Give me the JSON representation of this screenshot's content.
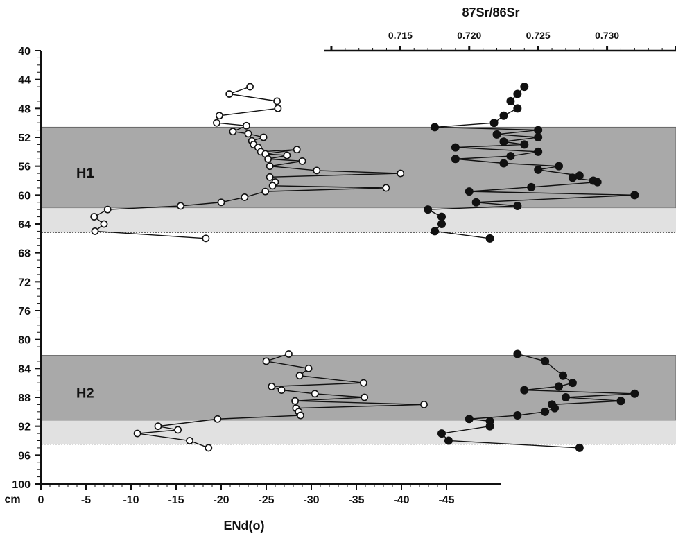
{
  "chart_data": {
    "type": "scatter",
    "title": "",
    "xlabel": "ENd(o)",
    "ylabel": "cm",
    "top_axis_label": "87Sr/86Sr",
    "y_ticks": [
      "40",
      "44",
      "48",
      "52",
      "56",
      "60",
      "64",
      "68",
      "72",
      "76",
      "80",
      "84",
      "88",
      "92",
      "96",
      "100"
    ],
    "x_ticks": [
      "0",
      "-5",
      "-10",
      "-15",
      "-20",
      "-25",
      "-30",
      "-35",
      "-40",
      "-45"
    ],
    "sr_ticks": [
      "0.715",
      "0.720",
      "0.725",
      "0.730"
    ],
    "ylim": [
      40,
      100
    ],
    "xlim": [
      0,
      -45
    ],
    "srlim": [
      0.7095,
      0.735
    ],
    "bands": [
      {
        "label": "H1",
        "top": 50.6,
        "bottom": 61.8,
        "lower_bottom": 65.2
      },
      {
        "label": "H2",
        "top": 82.2,
        "bottom": 91.2,
        "lower_bottom": 94.5
      }
    ],
    "series": [
      {
        "marker": "open-circle",
        "points": [
          [
            -23.2,
            45
          ],
          [
            -20.9,
            46
          ],
          [
            -26.2,
            47
          ],
          [
            -26.3,
            48
          ],
          [
            -19.8,
            49
          ],
          [
            -19.5,
            50
          ],
          [
            -22.8,
            50.4
          ],
          [
            -21.3,
            51.2
          ],
          [
            -23.0,
            51.5
          ],
          [
            -24.7,
            52
          ],
          [
            -23.4,
            52.5
          ],
          [
            -23.6,
            53
          ],
          [
            -24.1,
            53.4
          ],
          [
            -24.4,
            54
          ],
          [
            -28.4,
            53.7
          ],
          [
            -24.9,
            54.3
          ],
          [
            -27.3,
            54.5
          ],
          [
            -25.2,
            55
          ],
          [
            -29.0,
            55.3
          ],
          [
            -25.4,
            56
          ],
          [
            -30.6,
            56.6
          ],
          [
            -39.9,
            57
          ],
          [
            -25.4,
            57.5
          ],
          [
            -26.0,
            58.2
          ],
          [
            -25.7,
            58.7
          ],
          [
            -38.3,
            59
          ],
          [
            -24.9,
            59.5
          ],
          [
            -22.6,
            60.3
          ],
          [
            -20.0,
            61
          ],
          [
            -15.5,
            61.5
          ],
          [
            -7.4,
            62
          ],
          [
            -5.9,
            63
          ],
          [
            -7.0,
            64
          ],
          [
            -6.0,
            65
          ],
          [
            -18.3,
            66
          ]
        ]
      },
      {
        "marker": "filled-circle",
        "points": [
          [
            0.724,
            45
          ],
          [
            0.7235,
            46
          ],
          [
            0.723,
            47
          ],
          [
            0.7235,
            48
          ],
          [
            0.7225,
            49
          ],
          [
            0.7218,
            50
          ],
          [
            0.7175,
            50.6
          ],
          [
            0.725,
            51
          ],
          [
            0.722,
            51.6
          ],
          [
            0.725,
            52
          ],
          [
            0.7225,
            52.6
          ],
          [
            0.724,
            53
          ],
          [
            0.719,
            53.4
          ],
          [
            0.725,
            54
          ],
          [
            0.723,
            54.6
          ],
          [
            0.719,
            55
          ],
          [
            0.7225,
            55.6
          ],
          [
            0.7265,
            56
          ],
          [
            0.725,
            56.5
          ],
          [
            0.728,
            57.3
          ],
          [
            0.7275,
            57.6
          ],
          [
            0.729,
            58
          ],
          [
            0.7293,
            58.2
          ],
          [
            0.7245,
            58.9
          ],
          [
            0.72,
            59.5
          ],
          [
            0.732,
            60
          ],
          [
            0.7205,
            61
          ],
          [
            0.7235,
            61.5
          ],
          [
            0.717,
            62
          ],
          [
            0.718,
            63
          ],
          [
            0.718,
            64
          ],
          [
            0.7175,
            65
          ],
          [
            0.7215,
            66
          ]
        ]
      },
      {
        "marker": "open-circle",
        "points": [
          [
            -27.5,
            82
          ],
          [
            -25.0,
            83
          ],
          [
            -29.7,
            84
          ],
          [
            -28.7,
            85
          ],
          [
            -35.8,
            86
          ],
          [
            -25.6,
            86.5
          ],
          [
            -26.7,
            87
          ],
          [
            -30.4,
            87.5
          ],
          [
            -35.9,
            88
          ],
          [
            -28.2,
            88.5
          ],
          [
            -42.5,
            89
          ],
          [
            -28.3,
            89.5
          ],
          [
            -28.6,
            90
          ],
          [
            -28.8,
            90.5
          ],
          [
            -19.6,
            91
          ],
          [
            -13.0,
            92
          ],
          [
            -15.2,
            92.5
          ],
          [
            -10.7,
            93
          ],
          [
            -16.5,
            94
          ],
          [
            -18.6,
            95
          ]
        ]
      },
      {
        "marker": "filled-circle",
        "points": [
          [
            0.7235,
            82
          ],
          [
            0.7255,
            83
          ],
          [
            0.7268,
            85
          ],
          [
            0.7275,
            86
          ],
          [
            0.7265,
            86.5
          ],
          [
            0.724,
            87
          ],
          [
            0.732,
            87.5
          ],
          [
            0.727,
            88
          ],
          [
            0.731,
            88.5
          ],
          [
            0.726,
            89
          ],
          [
            0.7262,
            89.5
          ],
          [
            0.7255,
            90
          ],
          [
            0.7235,
            90.5
          ],
          [
            0.72,
            91
          ],
          [
            0.7215,
            91.3
          ],
          [
            0.7215,
            92
          ],
          [
            0.718,
            93
          ],
          [
            0.7185,
            94
          ],
          [
            0.728,
            95
          ]
        ]
      }
    ]
  }
}
